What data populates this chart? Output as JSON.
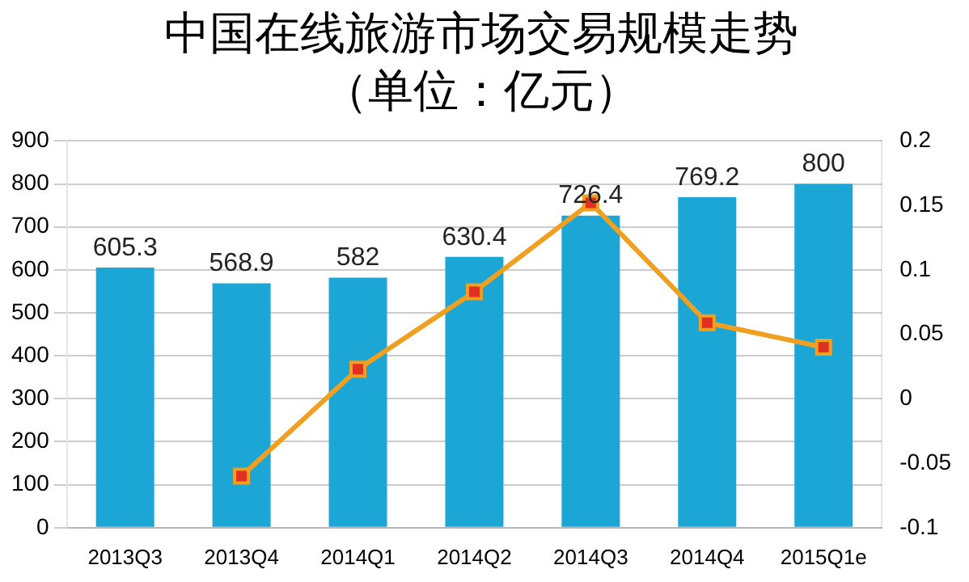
{
  "chart_data": {
    "type": "bar",
    "title": "中国在线旅游市场交易规模走势",
    "subtitle": "（单位：亿元）",
    "categories": [
      "2013Q3",
      "2013Q4",
      "2014Q1",
      "2014Q2",
      "2014Q3",
      "2014Q4",
      "2015Q1e"
    ],
    "series": [
      {
        "color": "#1ba6d6",
        "values": [
          605.3,
          568.9,
          582,
          630.4,
          726.4,
          769.2,
          800
        ],
        "value_labels": [
          "605.3",
          "568.9",
          "582",
          "630.4",
          "726.4",
          "769.2",
          "800"
        ]
      },
      {
        "type": "line",
        "axis": "y2",
        "color": "#f0a020",
        "marker": "square",
        "values": [
          null,
          -0.06,
          0.023,
          0.083,
          0.152,
          0.059,
          0.04
        ]
      }
    ],
    "ylim": [
      0,
      900
    ],
    "yticks": [
      0,
      100,
      200,
      300,
      400,
      500,
      600,
      700,
      800,
      900
    ],
    "y2lim": [
      -0.1,
      0.2
    ],
    "y2ticks": [
      -0.1,
      -0.05,
      0,
      0.05,
      0.1,
      0.15,
      0.2
    ],
    "grid": "y",
    "legend": false
  }
}
